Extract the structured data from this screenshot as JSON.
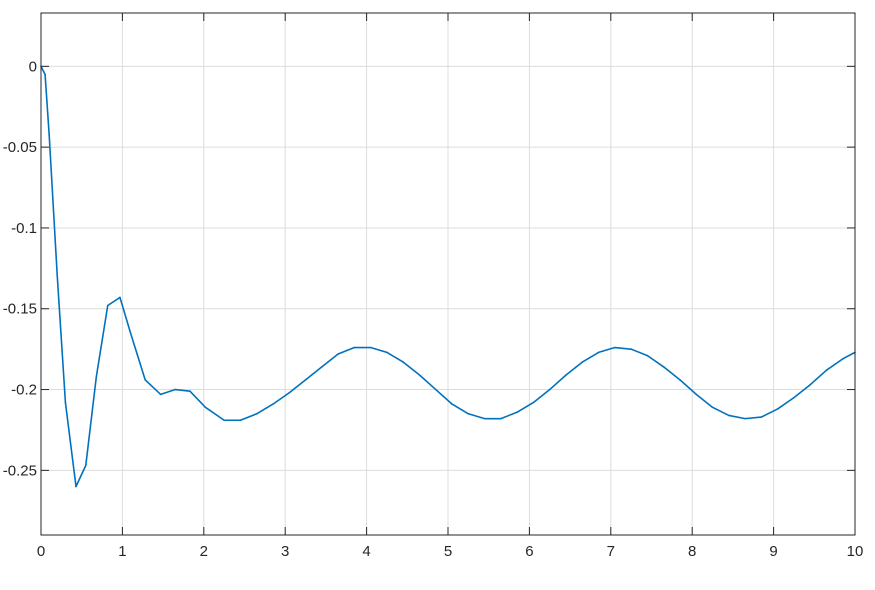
{
  "chart_data": {
    "type": "line",
    "title": "",
    "xlabel": "",
    "ylabel": "",
    "xlim": [
      0,
      10
    ],
    "ylim": [
      -0.29,
      0.033
    ],
    "x_ticks": [
      0,
      1,
      2,
      3,
      4,
      5,
      6,
      7,
      8,
      9,
      10
    ],
    "x_tick_labels": [
      "0",
      "1",
      "2",
      "3",
      "4",
      "5",
      "6",
      "7",
      "8",
      "9",
      "10"
    ],
    "y_ticks": [
      0,
      -0.05,
      -0.1,
      -0.15,
      -0.2,
      -0.25
    ],
    "y_tick_labels": [
      "0",
      "-0.05",
      "-0.1",
      "-0.15",
      "-0.2",
      "-0.25"
    ],
    "grid": true,
    "colors": {
      "line": "#0072BD",
      "grid": "#dcdcdc",
      "axes": "#262626"
    },
    "series": [
      {
        "x": [
          0,
          0.05,
          0.1,
          0.2,
          0.3,
          0.43,
          0.55,
          0.68,
          0.82,
          0.97,
          1.1,
          1.28,
          1.47,
          1.65,
          1.83,
          2.02,
          2.25,
          2.45,
          2.65,
          2.85,
          3.05,
          3.25,
          3.45,
          3.65,
          3.85,
          4.05,
          4.25,
          4.45,
          4.65,
          4.85,
          5.05,
          5.25,
          5.45,
          5.65,
          5.85,
          6.05,
          6.25,
          6.45,
          6.65,
          6.85,
          7.05,
          7.25,
          7.45,
          7.65,
          7.85,
          8.05,
          8.25,
          8.45,
          8.65,
          8.85,
          9.05,
          9.25,
          9.45,
          9.65,
          9.85,
          10
        ],
        "y": [
          0,
          -0.005,
          -0.042,
          -0.13,
          -0.208,
          -0.26,
          -0.247,
          -0.192,
          -0.148,
          -0.143,
          -0.165,
          -0.194,
          -0.203,
          -0.2,
          -0.201,
          -0.211,
          -0.219,
          -0.219,
          -0.215,
          -0.209,
          -0.202,
          -0.194,
          -0.186,
          -0.178,
          -0.174,
          -0.174,
          -0.177,
          -0.183,
          -0.191,
          -0.2,
          -0.209,
          -0.215,
          -0.218,
          -0.218,
          -0.214,
          -0.208,
          -0.2,
          -0.191,
          -0.183,
          -0.177,
          -0.174,
          -0.175,
          -0.179,
          -0.186,
          -0.194,
          -0.203,
          -0.211,
          -0.216,
          -0.218,
          -0.217,
          -0.212,
          -0.205,
          -0.197,
          -0.188,
          -0.181,
          -0.177
        ]
      }
    ]
  }
}
